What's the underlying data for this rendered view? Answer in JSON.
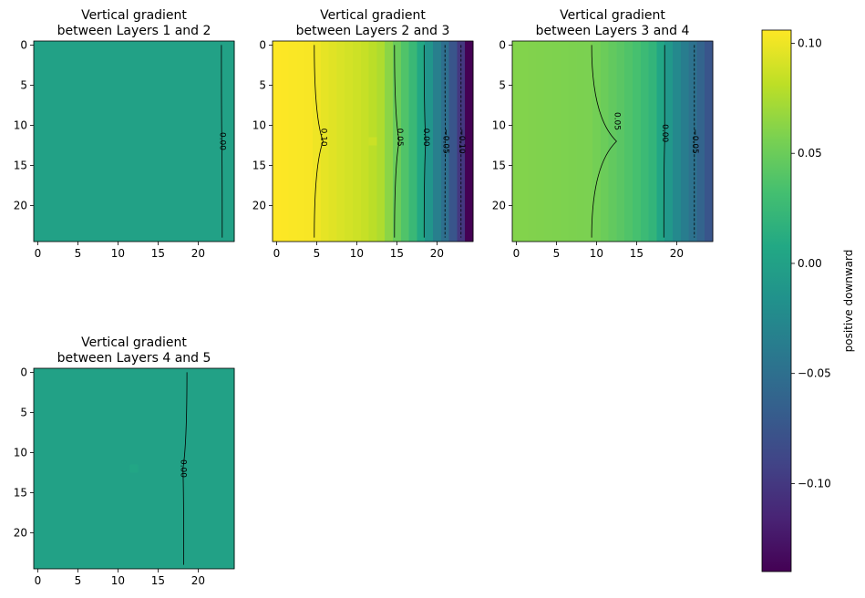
{
  "colorbar": {
    "label": "positive downward",
    "vmin": -0.14,
    "vmax": 0.106,
    "ticks": [
      0.1,
      0.05,
      0.0,
      -0.05,
      -0.1
    ],
    "tick_labels": [
      "0.10",
      "0.05",
      "0.00",
      "−0.05",
      "−0.10"
    ]
  },
  "chart_data": [
    {
      "type": "heatmap",
      "title_lines": [
        "Vertical gradient",
        "between Layers 1 and 2"
      ],
      "xlim": [
        -0.5,
        24.5
      ],
      "ylim": [
        24.5,
        -0.5
      ],
      "xticks": [
        0,
        5,
        10,
        15,
        20
      ],
      "yticks": [
        0,
        5,
        10,
        15,
        20
      ],
      "profile": [
        [
          0,
          0.0
        ],
        [
          24,
          0.0
        ]
      ],
      "spot": null,
      "contours": [
        {
          "level": 0.0,
          "label": "0.00",
          "dashed": false,
          "x": [
            22.9,
            22.95,
            23.0
          ],
          "label_y": 12
        }
      ]
    },
    {
      "type": "heatmap",
      "title_lines": [
        "Vertical gradient",
        "between Layers 2 and 3"
      ],
      "xlim": [
        -0.5,
        24.5
      ],
      "ylim": [
        24.5,
        -0.5
      ],
      "xticks": [
        0,
        5,
        10,
        15,
        20
      ],
      "yticks": [
        0,
        5,
        10,
        15,
        20
      ],
      "profile": [
        [
          0,
          0.106
        ],
        [
          4,
          0.104
        ],
        [
          6,
          0.097
        ],
        [
          9,
          0.09
        ],
        [
          11,
          0.085
        ],
        [
          13,
          0.076
        ],
        [
          15,
          0.05
        ],
        [
          17,
          0.025
        ],
        [
          18.4,
          0.0
        ],
        [
          20,
          -0.035
        ],
        [
          21,
          -0.05
        ],
        [
          22,
          -0.075
        ],
        [
          23,
          -0.1
        ],
        [
          24,
          -0.14
        ]
      ],
      "spot": {
        "x": 12,
        "y": 12,
        "delta": 0.006
      },
      "contours": [
        {
          "level": 0.1,
          "label": "0.10",
          "dashed": false,
          "x": [
            4.7,
            5.8,
            4.7
          ],
          "label_y": 11.5
        },
        {
          "level": 0.05,
          "label": "0.05",
          "dashed": false,
          "x": [
            14.7,
            15.3,
            14.7
          ],
          "label_y": 11.5
        },
        {
          "level": 0.0,
          "label": "0.00",
          "dashed": false,
          "x": [
            18.4,
            18.6,
            18.4
          ],
          "label_y": 11.5
        },
        {
          "level": -0.05,
          "label": "−0.05",
          "dashed": true,
          "x": [
            21.0,
            21.05,
            21.0
          ],
          "label_y": 12
        },
        {
          "level": -0.1,
          "label": "−0.10",
          "dashed": true,
          "x": [
            23.0,
            23.0,
            23.0
          ],
          "label_y": 12
        }
      ]
    },
    {
      "type": "heatmap",
      "title_lines": [
        "Vertical gradient",
        "between Layers 3 and 4"
      ],
      "xlim": [
        -0.5,
        24.5
      ],
      "ylim": [
        24.5,
        -0.5
      ],
      "xticks": [
        0,
        5,
        10,
        15,
        20
      ],
      "yticks": [
        0,
        5,
        10,
        15,
        20
      ],
      "profile": [
        [
          0,
          0.06
        ],
        [
          9,
          0.057
        ],
        [
          11,
          0.05
        ],
        [
          13,
          0.042
        ],
        [
          15,
          0.033
        ],
        [
          17,
          0.02
        ],
        [
          18.4,
          0.0
        ],
        [
          20,
          -0.025
        ],
        [
          22.2,
          -0.05
        ],
        [
          24,
          -0.075
        ]
      ],
      "spot": null,
      "contours": [
        {
          "level": 0.05,
          "label": "0.05",
          "dashed": false,
          "x": [
            9.4,
            12.5,
            9.4
          ],
          "label_y": 9.5
        },
        {
          "level": 0.0,
          "label": "0.00",
          "dashed": false,
          "x": [
            18.5,
            18.5,
            18.4
          ],
          "label_y": 11
        },
        {
          "level": -0.05,
          "label": "−0.05",
          "dashed": true,
          "x": [
            22.2,
            22.2,
            22.2
          ],
          "label_y": 12
        }
      ]
    },
    {
      "type": "heatmap",
      "title_lines": [
        "Vertical gradient",
        "between Layers 4 and 5"
      ],
      "xlim": [
        -0.5,
        24.5
      ],
      "ylim": [
        24.5,
        -0.5
      ],
      "xticks": [
        0,
        5,
        10,
        15,
        20
      ],
      "yticks": [
        0,
        5,
        10,
        15,
        20
      ],
      "profile": [
        [
          0,
          0.0
        ],
        [
          24,
          0.0
        ]
      ],
      "spot": {
        "x": 12,
        "y": 12,
        "delta": 0.005
      },
      "contours": [
        {
          "level": 0.0,
          "label": "0.00",
          "dashed": false,
          "x": [
            18.6,
            18.1,
            18.2
          ],
          "label_y": 12
        }
      ]
    }
  ]
}
